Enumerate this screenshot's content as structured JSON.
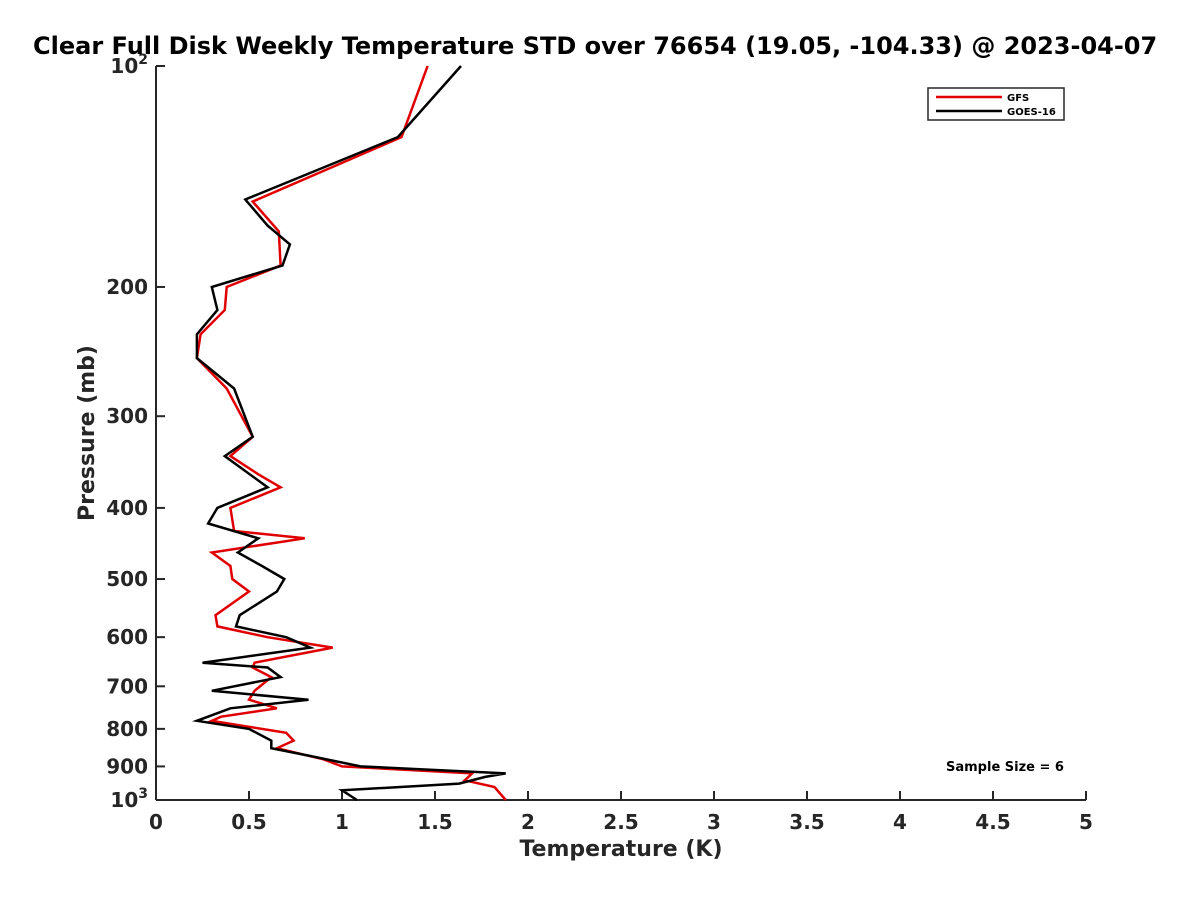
{
  "chart_data": {
    "type": "line",
    "title": "Clear Full Disk Weekly Temperature STD over 76654 (19.05, -104.33) @ 2023-04-07",
    "xlabel": "Temperature (K)",
    "ylabel": "Pressure (mb)",
    "xlim": [
      0,
      5
    ],
    "ylim": [
      100,
      1000
    ],
    "y_scale": "log",
    "y_reversed": true,
    "grid": false,
    "legend_position": "top-right",
    "x_ticks": [
      "0",
      "0.5",
      "1",
      "1.5",
      "2",
      "2.5",
      "3",
      "3.5",
      "4",
      "4.5",
      "5"
    ],
    "y_ticks": [
      {
        "value": 100,
        "label": "10",
        "sup": "2"
      },
      {
        "value": 200,
        "label": "200",
        "sup": ""
      },
      {
        "value": 300,
        "label": "300",
        "sup": ""
      },
      {
        "value": 400,
        "label": "400",
        "sup": ""
      },
      {
        "value": 500,
        "label": "500",
        "sup": ""
      },
      {
        "value": 600,
        "label": "600",
        "sup": ""
      },
      {
        "value": 700,
        "label": "700",
        "sup": ""
      },
      {
        "value": 800,
        "label": "800",
        "sup": ""
      },
      {
        "value": 900,
        "label": "900",
        "sup": ""
      },
      {
        "value": 1000,
        "label": "10",
        "sup": "3"
      }
    ],
    "annotation": "Sample Size = 6",
    "series": [
      {
        "name": "GFS",
        "color": "#e00000",
        "points": [
          [
            1.46,
            100
          ],
          [
            1.32,
            125
          ],
          [
            0.52,
            153
          ],
          [
            0.66,
            168
          ],
          [
            0.67,
            187
          ],
          [
            0.38,
            200
          ],
          [
            0.37,
            215
          ],
          [
            0.24,
            232
          ],
          [
            0.22,
            250
          ],
          [
            0.38,
            275
          ],
          [
            0.52,
            320
          ],
          [
            0.4,
            340
          ],
          [
            0.55,
            360
          ],
          [
            0.67,
            375
          ],
          [
            0.4,
            400
          ],
          [
            0.42,
            430
          ],
          [
            0.8,
            440
          ],
          [
            0.3,
            460
          ],
          [
            0.4,
            480
          ],
          [
            0.41,
            500
          ],
          [
            0.5,
            520
          ],
          [
            0.32,
            560
          ],
          [
            0.33,
            580
          ],
          [
            0.6,
            600
          ],
          [
            0.95,
            620
          ],
          [
            0.53,
            650
          ],
          [
            0.52,
            660
          ],
          [
            0.62,
            680
          ],
          [
            0.53,
            710
          ],
          [
            0.5,
            730
          ],
          [
            0.65,
            750
          ],
          [
            0.35,
            770
          ],
          [
            0.3,
            780
          ],
          [
            0.7,
            810
          ],
          [
            0.74,
            830
          ],
          [
            0.65,
            850
          ],
          [
            0.9,
            880
          ],
          [
            1.0,
            900
          ],
          [
            1.7,
            920
          ],
          [
            1.66,
            940
          ],
          [
            1.82,
            960
          ],
          [
            1.88,
            1000
          ]
        ]
      },
      {
        "name": "GOES-16",
        "color": "#000000",
        "points": [
          [
            1.64,
            100
          ],
          [
            1.3,
            125
          ],
          [
            0.48,
            152
          ],
          [
            0.6,
            165
          ],
          [
            0.72,
            175
          ],
          [
            0.68,
            187
          ],
          [
            0.3,
            200
          ],
          [
            0.33,
            215
          ],
          [
            0.22,
            232
          ],
          [
            0.22,
            250
          ],
          [
            0.42,
            275
          ],
          [
            0.52,
            320
          ],
          [
            0.37,
            340
          ],
          [
            0.6,
            375
          ],
          [
            0.33,
            400
          ],
          [
            0.28,
            420
          ],
          [
            0.55,
            440
          ],
          [
            0.44,
            460
          ],
          [
            0.57,
            480
          ],
          [
            0.69,
            500
          ],
          [
            0.65,
            520
          ],
          [
            0.45,
            560
          ],
          [
            0.43,
            580
          ],
          [
            0.7,
            600
          ],
          [
            0.83,
            620
          ],
          [
            0.25,
            650
          ],
          [
            0.6,
            660
          ],
          [
            0.67,
            680
          ],
          [
            0.3,
            710
          ],
          [
            0.82,
            730
          ],
          [
            0.4,
            750
          ],
          [
            0.22,
            780
          ],
          [
            0.5,
            800
          ],
          [
            0.62,
            830
          ],
          [
            0.62,
            850
          ],
          [
            0.82,
            870
          ],
          [
            1.1,
            900
          ],
          [
            1.88,
            920
          ],
          [
            1.77,
            930
          ],
          [
            1.63,
            950
          ],
          [
            1.0,
            970
          ],
          [
            1.08,
            1000
          ]
        ]
      }
    ]
  }
}
